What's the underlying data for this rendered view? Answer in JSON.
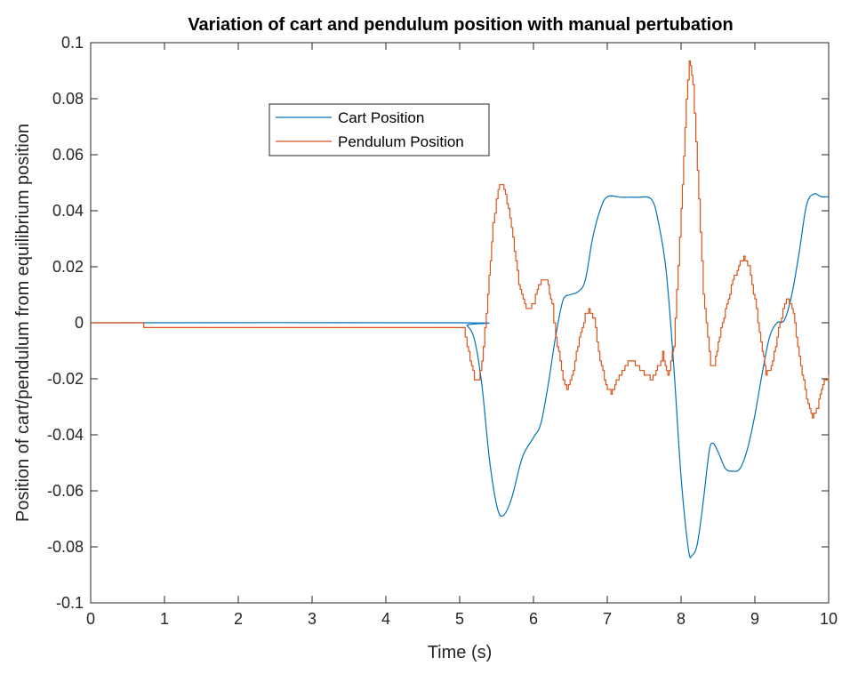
{
  "chart_data": {
    "type": "line",
    "title": "Variation of cart and pendulum position with manual pertubation",
    "xlabel": "Time (s)",
    "ylabel": "Position of cart/pendulum from equilibrium position",
    "xlim": [
      0,
      10
    ],
    "ylim": [
      -0.1,
      0.1
    ],
    "x_ticks": [
      "0",
      "1",
      "2",
      "3",
      "4",
      "5",
      "6",
      "7",
      "8",
      "9",
      "10"
    ],
    "y_ticks": [
      "-0.1",
      "-0.08",
      "-0.06",
      "-0.04",
      "-0.02",
      "0",
      "0.02",
      "0.04",
      "0.06",
      "0.08",
      "0.1"
    ],
    "grid": false,
    "legend_position": "upper-left-center",
    "series": [
      {
        "name": "Cart Position",
        "color": "#0072BD",
        "style": "smooth",
        "points": [
          [
            0,
            0
          ],
          [
            5.0,
            0
          ],
          [
            5.1,
            -0.001
          ],
          [
            5.2,
            -0.006
          ],
          [
            5.3,
            -0.022
          ],
          [
            5.4,
            -0.048
          ],
          [
            5.5,
            -0.065
          ],
          [
            5.58,
            -0.069
          ],
          [
            5.7,
            -0.063
          ],
          [
            5.85,
            -0.048
          ],
          [
            6.0,
            -0.041
          ],
          [
            6.1,
            -0.036
          ],
          [
            6.2,
            -0.022
          ],
          [
            6.3,
            -0.005
          ],
          [
            6.4,
            0.008
          ],
          [
            6.5,
            0.01
          ],
          [
            6.6,
            0.011
          ],
          [
            6.7,
            0.015
          ],
          [
            6.8,
            0.03
          ],
          [
            6.9,
            0.04
          ],
          [
            7.0,
            0.045
          ],
          [
            7.2,
            0.0448
          ],
          [
            7.4,
            0.0448
          ],
          [
            7.6,
            0.044
          ],
          [
            7.7,
            0.035
          ],
          [
            7.8,
            0.018
          ],
          [
            7.9,
            -0.015
          ],
          [
            8.0,
            -0.055
          ],
          [
            8.1,
            -0.081
          ],
          [
            8.15,
            -0.083
          ],
          [
            8.22,
            -0.079
          ],
          [
            8.3,
            -0.064
          ],
          [
            8.38,
            -0.046
          ],
          [
            8.43,
            -0.043
          ],
          [
            8.5,
            -0.046
          ],
          [
            8.6,
            -0.052
          ],
          [
            8.7,
            -0.053
          ],
          [
            8.8,
            -0.052
          ],
          [
            8.9,
            -0.045
          ],
          [
            9.0,
            -0.033
          ],
          [
            9.1,
            -0.018
          ],
          [
            9.2,
            -0.005
          ],
          [
            9.3,
            0.0
          ],
          [
            9.4,
            0.001
          ],
          [
            9.5,
            0.01
          ],
          [
            9.6,
            0.025
          ],
          [
            9.7,
            0.042
          ],
          [
            9.8,
            0.046
          ],
          [
            9.9,
            0.045
          ],
          [
            10.0,
            0.045
          ]
        ]
      },
      {
        "name": "Pendulum Position",
        "color": "#D95319",
        "style": "stepped",
        "points": [
          [
            0,
            0
          ],
          [
            0.7,
            0
          ],
          [
            0.72,
            -0.0018
          ],
          [
            5.05,
            -0.0018
          ],
          [
            5.1,
            -0.008
          ],
          [
            5.2,
            -0.02
          ],
          [
            5.25,
            -0.021
          ],
          [
            5.3,
            -0.014
          ],
          [
            5.38,
            0.01
          ],
          [
            5.45,
            0.035
          ],
          [
            5.52,
            0.048
          ],
          [
            5.56,
            0.05
          ],
          [
            5.62,
            0.046
          ],
          [
            5.7,
            0.034
          ],
          [
            5.8,
            0.014
          ],
          [
            5.9,
            0.005
          ],
          [
            5.95,
            0.005
          ],
          [
            6.0,
            0.007
          ],
          [
            6.05,
            0.012
          ],
          [
            6.12,
            0.0155
          ],
          [
            6.18,
            0.015
          ],
          [
            6.25,
            0.006
          ],
          [
            6.3,
            -0.005
          ],
          [
            6.4,
            -0.02
          ],
          [
            6.45,
            -0.023
          ],
          [
            6.52,
            -0.019
          ],
          [
            6.6,
            -0.008
          ],
          [
            6.7,
            0.003
          ],
          [
            6.75,
            0.0045
          ],
          [
            6.82,
            0.001
          ],
          [
            6.9,
            -0.013
          ],
          [
            7.0,
            -0.024
          ],
          [
            7.05,
            -0.025
          ],
          [
            7.12,
            -0.021
          ],
          [
            7.2,
            -0.017
          ],
          [
            7.3,
            -0.013
          ],
          [
            7.4,
            -0.015
          ],
          [
            7.5,
            -0.018
          ],
          [
            7.6,
            -0.02
          ],
          [
            7.7,
            -0.015
          ],
          [
            7.75,
            -0.011
          ],
          [
            7.82,
            -0.019
          ],
          [
            7.9,
            -0.008
          ],
          [
            8.0,
            0.04
          ],
          [
            8.07,
            0.08
          ],
          [
            8.11,
            0.094
          ],
          [
            8.16,
            0.085
          ],
          [
            8.22,
            0.055
          ],
          [
            8.3,
            0.01
          ],
          [
            8.4,
            -0.015
          ],
          [
            8.45,
            -0.015
          ],
          [
            8.52,
            -0.005
          ],
          [
            8.6,
            0.005
          ],
          [
            8.7,
            0.015
          ],
          [
            8.8,
            0.022
          ],
          [
            8.85,
            0.0235
          ],
          [
            8.92,
            0.02
          ],
          [
            9.0,
            0.008
          ],
          [
            9.1,
            -0.01
          ],
          [
            9.15,
            -0.018
          ],
          [
            9.22,
            -0.016
          ],
          [
            9.3,
            -0.005
          ],
          [
            9.38,
            0.005
          ],
          [
            9.45,
            0.009
          ],
          [
            9.52,
            0.003
          ],
          [
            9.6,
            -0.012
          ],
          [
            9.7,
            -0.027
          ],
          [
            9.78,
            -0.034
          ],
          [
            9.85,
            -0.03
          ],
          [
            9.92,
            -0.022
          ],
          [
            10.0,
            -0.019
          ]
        ]
      }
    ]
  }
}
